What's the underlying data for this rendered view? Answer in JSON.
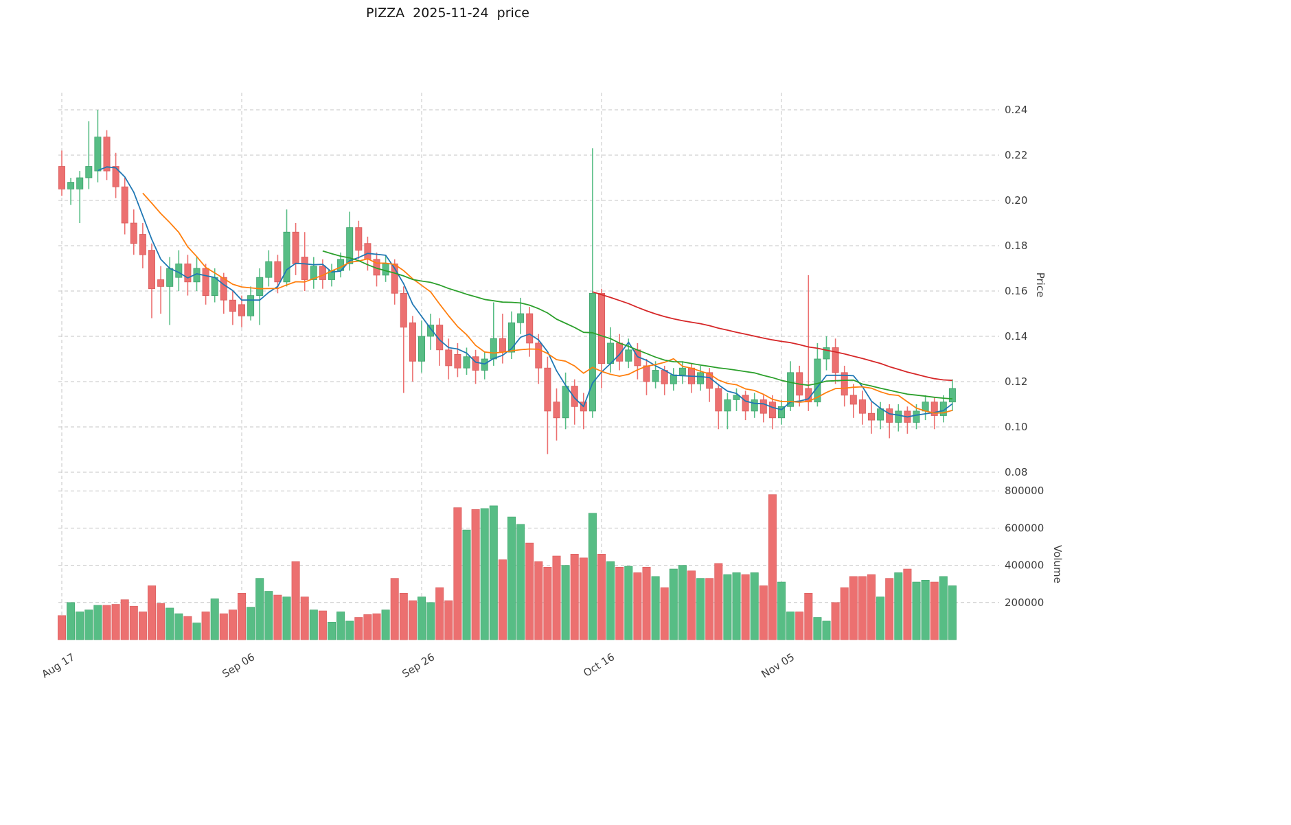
{
  "title": "PIZZA  2025-11-24  price",
  "chart_data": {
    "type": "candlestick",
    "title": "PIZZA  2025-11-24  price",
    "legend": "none",
    "grid": "dashed",
    "price_axis": {
      "label": "Price",
      "side": "right",
      "ticks": [
        0.08,
        0.1,
        0.12,
        0.14,
        0.16,
        0.18,
        0.2,
        0.22,
        0.24
      ],
      "range": [
        0.08,
        0.24
      ]
    },
    "volume_axis": {
      "label": "Volume",
      "side": "right",
      "ticks": [
        200000,
        400000,
        600000,
        800000
      ],
      "range": [
        0,
        800000
      ]
    },
    "x_ticks": [
      {
        "index": 0,
        "label": "Aug 17"
      },
      {
        "index": 20,
        "label": "Sep 06"
      },
      {
        "index": 40,
        "label": "Sep 26"
      },
      {
        "index": 60,
        "label": "Oct 16"
      },
      {
        "index": 80,
        "label": "Nov 05"
      }
    ],
    "colors": {
      "up": "#57bd85",
      "down": "#ec7070",
      "up_edge": "#3fa36c",
      "down_edge": "#d95c5c",
      "grid": "#c6c6c6",
      "tick_text": "#3d3d3d",
      "ma5": "#1f77b4",
      "ma10": "#ff7f0e",
      "ma30": "#2ca02c",
      "ma60": "#d62728"
    },
    "moving_averages": [
      {
        "name": "SMA5",
        "period": 5,
        "color_key": "ma5"
      },
      {
        "name": "SMA10",
        "period": 10,
        "color_key": "ma10"
      },
      {
        "name": "SMA30",
        "period": 30,
        "color_key": "ma30"
      },
      {
        "name": "SMA60",
        "period": 60,
        "color_key": "ma60"
      }
    ],
    "candles_format": [
      "date",
      "open",
      "high",
      "low",
      "close",
      "volume"
    ],
    "candles": [
      [
        "2025-08-17",
        0.215,
        0.222,
        0.202,
        0.205,
        130000
      ],
      [
        "2025-08-18",
        0.205,
        0.21,
        0.198,
        0.208,
        200000
      ],
      [
        "2025-08-19",
        0.205,
        0.213,
        0.19,
        0.21,
        150000
      ],
      [
        "2025-08-20",
        0.21,
        0.235,
        0.205,
        0.215,
        160000
      ],
      [
        "2025-08-21",
        0.213,
        0.24,
        0.208,
        0.228,
        185000
      ],
      [
        "2025-08-22",
        0.228,
        0.231,
        0.209,
        0.213,
        185000
      ],
      [
        "2025-08-23",
        0.215,
        0.221,
        0.201,
        0.206,
        190000
      ],
      [
        "2025-08-24",
        0.206,
        0.21,
        0.185,
        0.19,
        215000
      ],
      [
        "2025-08-25",
        0.19,
        0.196,
        0.176,
        0.181,
        180000
      ],
      [
        "2025-08-26",
        0.185,
        0.19,
        0.17,
        0.176,
        150000
      ],
      [
        "2025-08-27",
        0.178,
        0.181,
        0.148,
        0.161,
        290000
      ],
      [
        "2025-08-28",
        0.165,
        0.171,
        0.15,
        0.162,
        195000
      ],
      [
        "2025-08-29",
        0.162,
        0.175,
        0.145,
        0.17,
        170000
      ],
      [
        "2025-08-30",
        0.166,
        0.178,
        0.16,
        0.172,
        140000
      ],
      [
        "2025-08-31",
        0.172,
        0.176,
        0.158,
        0.164,
        125000
      ],
      [
        "2025-09-01",
        0.164,
        0.175,
        0.16,
        0.17,
        90000
      ],
      [
        "2025-09-02",
        0.17,
        0.172,
        0.154,
        0.158,
        150000
      ],
      [
        "2025-09-03",
        0.158,
        0.17,
        0.155,
        0.166,
        220000
      ],
      [
        "2025-09-04",
        0.166,
        0.168,
        0.15,
        0.156,
        140000
      ],
      [
        "2025-09-05",
        0.156,
        0.16,
        0.145,
        0.151,
        160000
      ],
      [
        "2025-09-06",
        0.154,
        0.158,
        0.144,
        0.149,
        250000
      ],
      [
        "2025-09-07",
        0.149,
        0.162,
        0.147,
        0.158,
        175000
      ],
      [
        "2025-09-08",
        0.158,
        0.17,
        0.145,
        0.166,
        330000
      ],
      [
        "2025-09-09",
        0.166,
        0.178,
        0.162,
        0.173,
        260000
      ],
      [
        "2025-09-10",
        0.173,
        0.176,
        0.159,
        0.164,
        240000
      ],
      [
        "2025-09-11",
        0.164,
        0.196,
        0.162,
        0.186,
        230000
      ],
      [
        "2025-09-12",
        0.186,
        0.19,
        0.167,
        0.172,
        420000
      ],
      [
        "2025-09-13",
        0.175,
        0.186,
        0.16,
        0.165,
        230000
      ],
      [
        "2025-09-14",
        0.165,
        0.175,
        0.161,
        0.171,
        160000
      ],
      [
        "2025-09-15",
        0.171,
        0.174,
        0.161,
        0.165,
        155000
      ],
      [
        "2025-09-16",
        0.165,
        0.172,
        0.162,
        0.169,
        95000
      ],
      [
        "2025-09-17",
        0.169,
        0.177,
        0.166,
        0.174,
        150000
      ],
      [
        "2025-09-18",
        0.172,
        0.195,
        0.169,
        0.188,
        100000
      ],
      [
        "2025-09-19",
        0.188,
        0.191,
        0.174,
        0.178,
        120000
      ],
      [
        "2025-09-20",
        0.181,
        0.184,
        0.169,
        0.174,
        135000
      ],
      [
        "2025-09-21",
        0.174,
        0.177,
        0.162,
        0.167,
        140000
      ],
      [
        "2025-09-22",
        0.167,
        0.176,
        0.164,
        0.172,
        160000
      ],
      [
        "2025-09-23",
        0.172,
        0.174,
        0.154,
        0.159,
        330000
      ],
      [
        "2025-09-24",
        0.159,
        0.162,
        0.115,
        0.144,
        250000
      ],
      [
        "2025-09-25",
        0.146,
        0.149,
        0.12,
        0.129,
        210000
      ],
      [
        "2025-09-26",
        0.129,
        0.147,
        0.124,
        0.14,
        230000
      ],
      [
        "2025-09-27",
        0.14,
        0.15,
        0.134,
        0.145,
        200000
      ],
      [
        "2025-09-28",
        0.145,
        0.148,
        0.127,
        0.134,
        280000
      ],
      [
        "2025-09-29",
        0.134,
        0.139,
        0.121,
        0.127,
        210000
      ],
      [
        "2025-09-30",
        0.132,
        0.137,
        0.122,
        0.126,
        710000
      ],
      [
        "2025-10-01",
        0.126,
        0.135,
        0.123,
        0.131,
        590000
      ],
      [
        "2025-10-02",
        0.131,
        0.134,
        0.119,
        0.125,
        700000
      ],
      [
        "2025-10-03",
        0.125,
        0.133,
        0.121,
        0.13,
        705000
      ],
      [
        "2025-10-04",
        0.13,
        0.155,
        0.127,
        0.139,
        720000
      ],
      [
        "2025-10-05",
        0.139,
        0.15,
        0.128,
        0.133,
        430000
      ],
      [
        "2025-10-06",
        0.133,
        0.151,
        0.13,
        0.146,
        660000
      ],
      [
        "2025-10-07",
        0.146,
        0.157,
        0.141,
        0.15,
        620000
      ],
      [
        "2025-10-08",
        0.15,
        0.153,
        0.131,
        0.137,
        520000
      ],
      [
        "2025-10-09",
        0.137,
        0.141,
        0.119,
        0.126,
        420000
      ],
      [
        "2025-10-10",
        0.126,
        0.131,
        0.088,
        0.107,
        390000
      ],
      [
        "2025-10-11",
        0.111,
        0.117,
        0.094,
        0.104,
        450000
      ],
      [
        "2025-10-12",
        0.104,
        0.124,
        0.099,
        0.118,
        400000
      ],
      [
        "2025-10-13",
        0.118,
        0.121,
        0.101,
        0.109,
        460000
      ],
      [
        "2025-10-14",
        0.111,
        0.115,
        0.099,
        0.107,
        440000
      ],
      [
        "2025-10-15",
        0.107,
        0.223,
        0.104,
        0.159,
        680000
      ],
      [
        "2025-10-16",
        0.159,
        0.161,
        0.117,
        0.128,
        460000
      ],
      [
        "2025-10-17",
        0.128,
        0.144,
        0.124,
        0.137,
        420000
      ],
      [
        "2025-10-18",
        0.137,
        0.141,
        0.125,
        0.129,
        390000
      ],
      [
        "2025-10-19",
        0.129,
        0.139,
        0.126,
        0.134,
        395000
      ],
      [
        "2025-10-20",
        0.134,
        0.137,
        0.121,
        0.127,
        360000
      ],
      [
        "2025-10-21",
        0.127,
        0.13,
        0.114,
        0.12,
        390000
      ],
      [
        "2025-10-22",
        0.12,
        0.129,
        0.117,
        0.125,
        340000
      ],
      [
        "2025-10-23",
        0.125,
        0.127,
        0.114,
        0.119,
        280000
      ],
      [
        "2025-10-24",
        0.119,
        0.126,
        0.116,
        0.123,
        380000
      ],
      [
        "2025-10-25",
        0.123,
        0.129,
        0.119,
        0.126,
        400000
      ],
      [
        "2025-10-26",
        0.126,
        0.128,
        0.115,
        0.119,
        370000
      ],
      [
        "2025-10-27",
        0.119,
        0.127,
        0.116,
        0.124,
        330000
      ],
      [
        "2025-10-28",
        0.124,
        0.126,
        0.111,
        0.117,
        330000
      ],
      [
        "2025-10-29",
        0.117,
        0.119,
        0.099,
        0.107,
        410000
      ],
      [
        "2025-10-30",
        0.107,
        0.115,
        0.099,
        0.112,
        350000
      ],
      [
        "2025-10-31",
        0.112,
        0.117,
        0.107,
        0.114,
        360000
      ],
      [
        "2025-11-01",
        0.114,
        0.116,
        0.103,
        0.107,
        350000
      ],
      [
        "2025-11-02",
        0.107,
        0.115,
        0.104,
        0.112,
        360000
      ],
      [
        "2025-11-03",
        0.112,
        0.114,
        0.102,
        0.106,
        290000
      ],
      [
        "2025-11-04",
        0.111,
        0.114,
        0.099,
        0.104,
        780000
      ],
      [
        "2025-11-05",
        0.104,
        0.112,
        0.101,
        0.109,
        310000
      ],
      [
        "2025-11-06",
        0.109,
        0.129,
        0.107,
        0.124,
        150000
      ],
      [
        "2025-11-07",
        0.124,
        0.127,
        0.109,
        0.114,
        150000
      ],
      [
        "2025-11-08",
        0.117,
        0.167,
        0.107,
        0.111,
        250000
      ],
      [
        "2025-11-09",
        0.111,
        0.137,
        0.109,
        0.13,
        120000
      ],
      [
        "2025-11-10",
        0.13,
        0.14,
        0.125,
        0.135,
        100000
      ],
      [
        "2025-11-11",
        0.135,
        0.139,
        0.119,
        0.124,
        200000
      ],
      [
        "2025-11-12",
        0.124,
        0.127,
        0.109,
        0.114,
        280000
      ],
      [
        "2025-11-13",
        0.114,
        0.119,
        0.104,
        0.11,
        340000
      ],
      [
        "2025-11-14",
        0.112,
        0.116,
        0.101,
        0.106,
        340000
      ],
      [
        "2025-11-15",
        0.106,
        0.111,
        0.097,
        0.103,
        350000
      ],
      [
        "2025-11-16",
        0.103,
        0.111,
        0.099,
        0.108,
        230000
      ],
      [
        "2025-11-17",
        0.108,
        0.11,
        0.095,
        0.102,
        330000
      ],
      [
        "2025-11-18",
        0.102,
        0.11,
        0.098,
        0.107,
        360000
      ],
      [
        "2025-11-19",
        0.107,
        0.109,
        0.097,
        0.102,
        380000
      ],
      [
        "2025-11-20",
        0.102,
        0.11,
        0.099,
        0.107,
        310000
      ],
      [
        "2025-11-21",
        0.107,
        0.114,
        0.103,
        0.111,
        320000
      ],
      [
        "2025-11-22",
        0.111,
        0.113,
        0.099,
        0.105,
        310000
      ],
      [
        "2025-11-23",
        0.105,
        0.114,
        0.102,
        0.111,
        340000
      ],
      [
        "2025-11-24",
        0.111,
        0.121,
        0.107,
        0.117,
        290000
      ]
    ]
  }
}
